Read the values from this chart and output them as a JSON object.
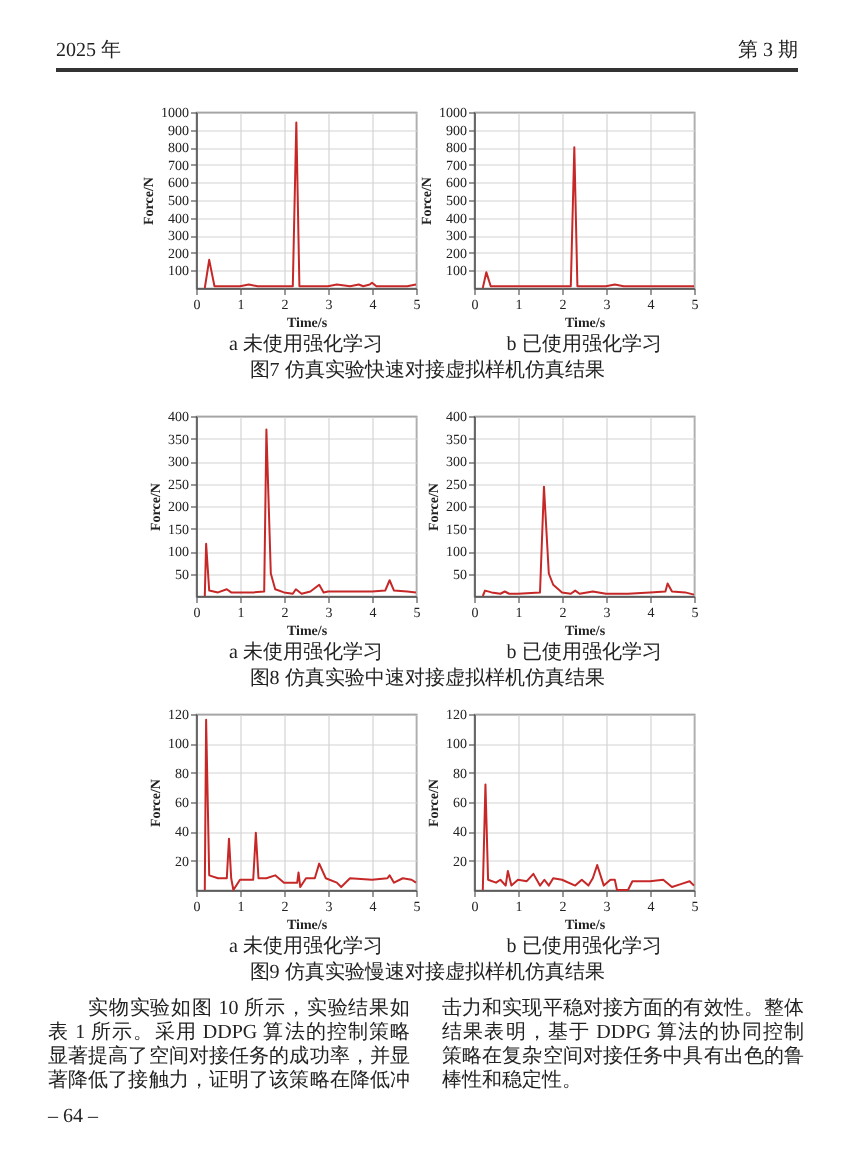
{
  "chart_data": [
    {
      "type": "other",
      "annotations": [
        "2025 年",
        "第 3 期"
      ]
    },
    {
      "type": "line",
      "title": "a 未使用强化学习",
      "xlabel": "Time/s",
      "ylabel": "Force/N",
      "color": "#c62828",
      "grid": true,
      "xlim": [
        0,
        5
      ],
      "ylim": [
        0,
        1000
      ],
      "xticks": [
        0,
        1,
        2,
        3,
        4,
        5
      ],
      "yticks": [
        100,
        200,
        300,
        400,
        500,
        600,
        700,
        800,
        900,
        1000
      ],
      "annotations": [
        "图7 仿真实验快速对接虚拟样机仿真结果"
      ],
      "x": [
        0.2,
        0.3,
        0.42,
        0.6,
        1.0,
        1.2,
        1.4,
        1.8,
        2.0,
        2.2,
        2.28,
        2.35,
        2.6,
        3.0,
        3.2,
        3.5,
        3.7,
        3.8,
        3.95,
        4.0,
        4.1,
        4.5,
        4.8,
        5.0
      ],
      "values": [
        0,
        160,
        10,
        10,
        10,
        20,
        10,
        10,
        10,
        10,
        940,
        10,
        10,
        10,
        20,
        10,
        20,
        10,
        20,
        30,
        10,
        10,
        10,
        20
      ]
    },
    {
      "type": "line",
      "title": "b 已使用强化学习",
      "xlabel": "Time/s",
      "ylabel": "Force/N",
      "color": "#c62828",
      "grid": true,
      "xlim": [
        0,
        5
      ],
      "ylim": [
        0,
        1000
      ],
      "xticks": [
        0,
        1,
        2,
        3,
        4,
        5
      ],
      "yticks": [
        100,
        200,
        300,
        400,
        500,
        600,
        700,
        800,
        900,
        1000
      ],
      "x": [
        0.2,
        0.28,
        0.38,
        0.6,
        1.0,
        1.5,
        2.0,
        2.2,
        2.28,
        2.35,
        2.6,
        3.0,
        3.2,
        3.4,
        3.8,
        4.2,
        4.6,
        5.0
      ],
      "values": [
        0,
        90,
        10,
        10,
        10,
        10,
        10,
        10,
        800,
        10,
        10,
        10,
        20,
        10,
        10,
        10,
        10,
        10
      ]
    },
    {
      "type": "line",
      "title": "a 未使用强化学习",
      "xlabel": "Time/s",
      "ylabel": "Force/N",
      "color": "#c62828",
      "grid": true,
      "xlim": [
        0,
        5
      ],
      "ylim": [
        0,
        400
      ],
      "xticks": [
        0,
        1,
        2,
        3,
        4,
        5
      ],
      "yticks": [
        50,
        100,
        150,
        200,
        250,
        300,
        350,
        400
      ],
      "annotations": [
        "图8 仿真实验中速对接虚拟样机仿真结果"
      ],
      "x": [
        0.2,
        0.23,
        0.3,
        0.5,
        0.7,
        0.8,
        1.0,
        1.3,
        1.55,
        1.6,
        1.7,
        1.8,
        2.0,
        2.2,
        2.27,
        2.4,
        2.6,
        2.8,
        2.9,
        3.0,
        3.5,
        4.0,
        4.3,
        4.4,
        4.5,
        4.8,
        5.0
      ],
      "values": [
        0,
        116,
        12,
        8,
        15,
        8,
        8,
        8,
        10,
        370,
        50,
        15,
        8,
        5,
        15,
        5,
        10,
        25,
        8,
        10,
        10,
        10,
        12,
        35,
        12,
        10,
        8
      ]
    },
    {
      "type": "line",
      "title": "b 已使用强化学习",
      "xlabel": "Time/s",
      "ylabel": "Force/N",
      "color": "#c62828",
      "grid": true,
      "xlim": [
        0,
        5
      ],
      "ylim": [
        0,
        400
      ],
      "xticks": [
        0,
        1,
        2,
        3,
        4,
        5
      ],
      "yticks": [
        50,
        100,
        150,
        200,
        250,
        300,
        350,
        400
      ],
      "x": [
        0.2,
        0.25,
        0.4,
        0.6,
        0.7,
        0.8,
        1.0,
        1.5,
        1.59,
        1.7,
        1.8,
        2.0,
        2.2,
        2.3,
        2.4,
        2.7,
        3.0,
        3.5,
        4.0,
        4.35,
        4.4,
        4.5,
        4.8,
        5.0
      ],
      "values": [
        0,
        12,
        8,
        5,
        10,
        5,
        5,
        8,
        243,
        50,
        25,
        8,
        5,
        12,
        5,
        10,
        5,
        5,
        8,
        10,
        28,
        10,
        8,
        3
      ]
    },
    {
      "type": "line",
      "title": "a 未使用强化学习",
      "xlabel": "Time/s",
      "ylabel": "Force/N",
      "color": "#c62828",
      "grid": true,
      "xlim": [
        0,
        5
      ],
      "ylim": [
        0,
        120
      ],
      "xticks": [
        0,
        1,
        2,
        3,
        4,
        5
      ],
      "yticks": [
        20,
        40,
        60,
        80,
        100,
        120
      ],
      "annotations": [
        "图9 仿真实验慢速对接虚拟样机仿真结果"
      ],
      "x": [
        0.2,
        0.23,
        0.3,
        0.5,
        0.7,
        0.75,
        0.8,
        0.85,
        1.0,
        1.3,
        1.36,
        1.42,
        1.6,
        1.8,
        2.0,
        2.3,
        2.33,
        2.37,
        2.5,
        2.7,
        2.8,
        2.95,
        3.2,
        3.3,
        3.5,
        4.0,
        4.35,
        4.4,
        4.5,
        4.7,
        4.9,
        5.0
      ],
      "values": [
        0,
        116,
        10,
        8,
        8,
        35,
        8,
        0,
        7,
        7,
        39,
        8,
        8,
        10,
        5,
        5,
        12,
        2,
        8,
        8,
        18,
        8,
        5,
        2,
        8,
        7,
        8,
        10,
        5,
        8,
        7,
        5
      ]
    },
    {
      "type": "line",
      "title": "b 已使用强化学习",
      "xlabel": "Time/s",
      "ylabel": "Force/N",
      "color": "#c62828",
      "grid": true,
      "xlim": [
        0,
        5
      ],
      "ylim": [
        0,
        120
      ],
      "xticks": [
        0,
        1,
        2,
        3,
        4,
        5
      ],
      "yticks": [
        20,
        40,
        60,
        80,
        100,
        120
      ],
      "x": [
        0.2,
        0.26,
        0.32,
        0.5,
        0.6,
        0.72,
        0.77,
        0.85,
        1.0,
        1.2,
        1.35,
        1.5,
        1.6,
        1.7,
        1.8,
        2.0,
        2.3,
        2.45,
        2.6,
        2.7,
        2.8,
        2.95,
        3.1,
        3.2,
        3.25,
        3.5,
        3.6,
        4.0,
        4.3,
        4.5,
        4.7,
        4.9,
        5.0
      ],
      "values": [
        0,
        72,
        7,
        5,
        7,
        3,
        13,
        3,
        7,
        6,
        11,
        3,
        7,
        3,
        8,
        7,
        3,
        7,
        3,
        8,
        17,
        3,
        7,
        7,
        0,
        0,
        6,
        6,
        7,
        2,
        4,
        6,
        3
      ]
    },
    {
      "type": "other",
      "annotations": [
        "实物实验如图 10 所示，实验结果如表 1 所示。采用 DDPG 算法的控制策略显著提高了空间对接任务的成功率，并显著降低了接触力，证明了该策略在降低冲击力和实现平稳对接方面的有效性。整体结果表明，基于 DDPG 算法的协同控制策略在复杂空间对接任务中具有出色的鲁棒性和稳定性。",
        "– 64 –"
      ]
    }
  ]
}
